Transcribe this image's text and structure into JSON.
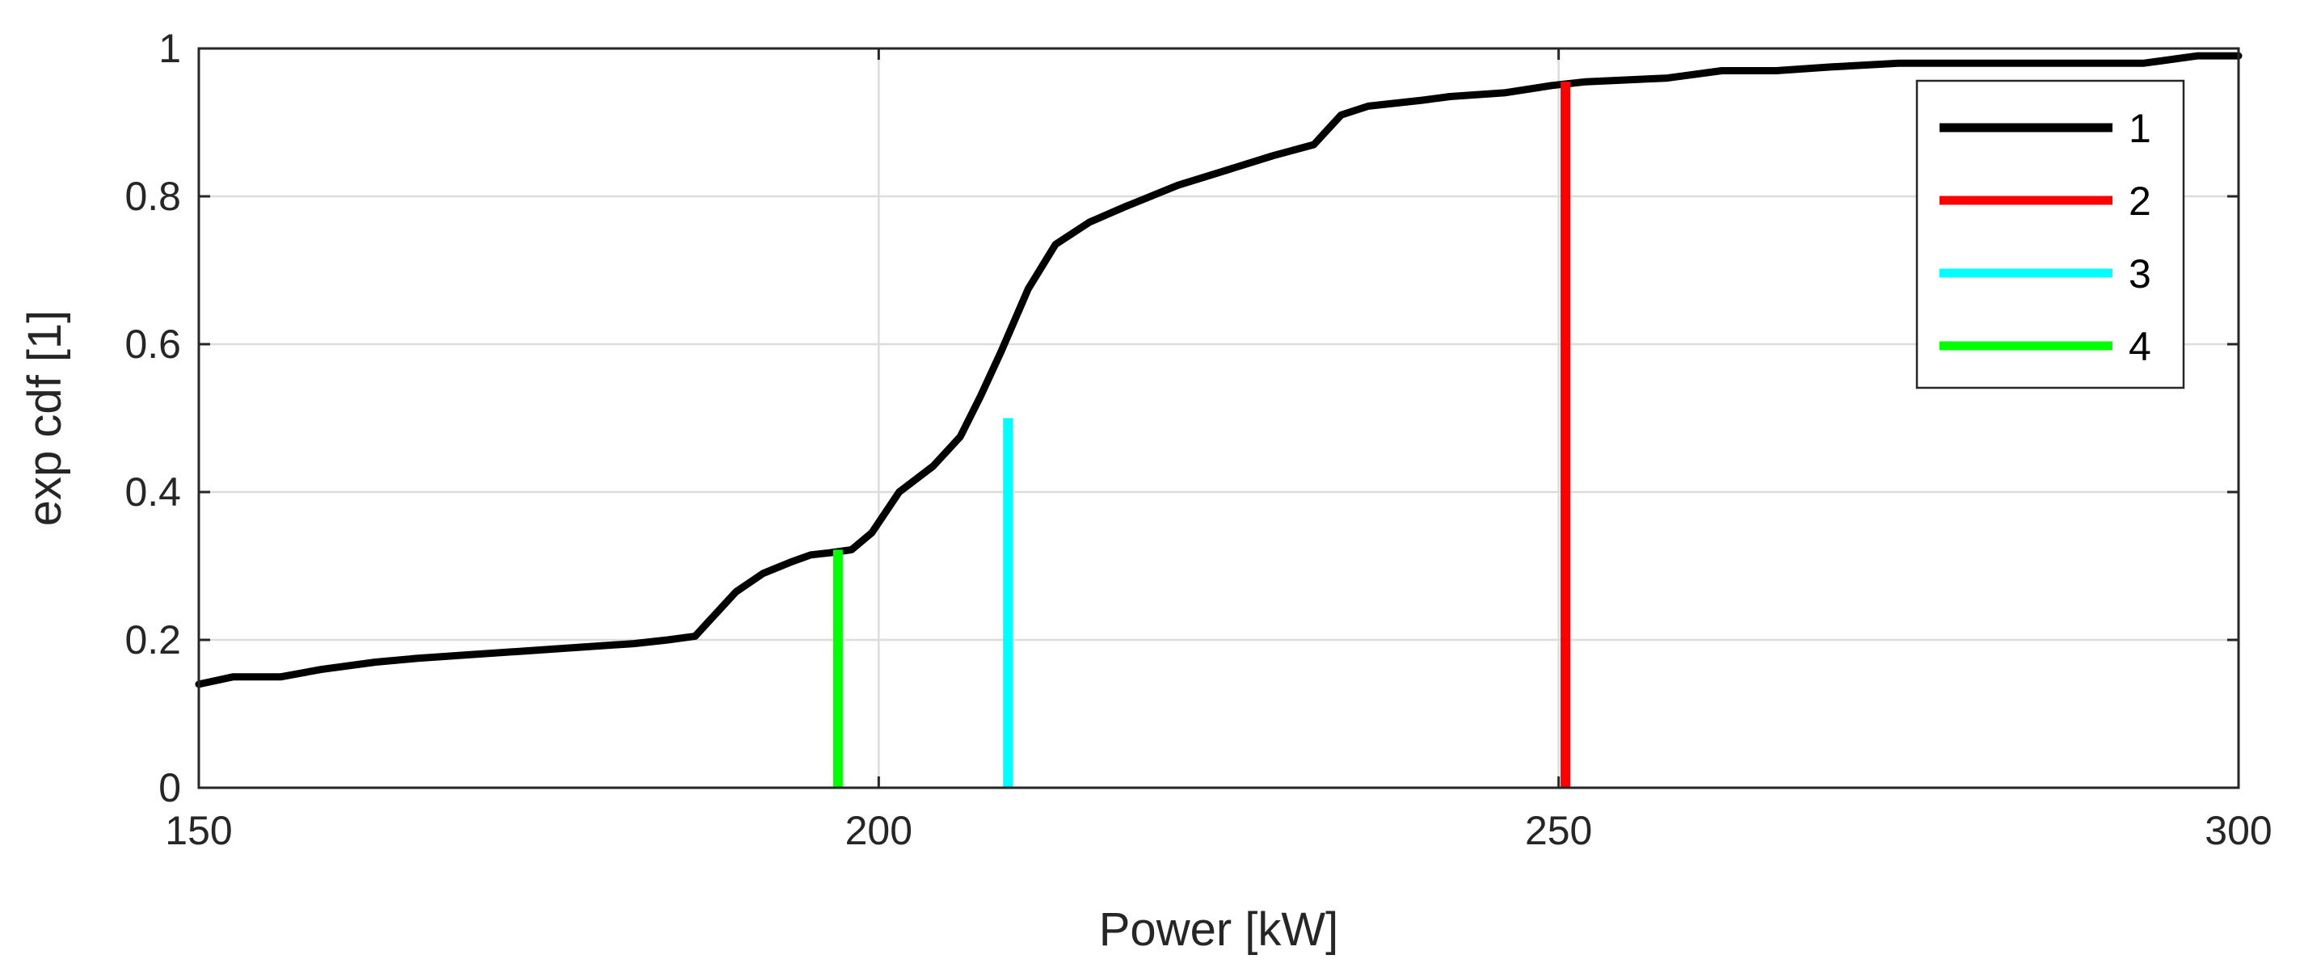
{
  "chart_data": {
    "type": "line",
    "title": "",
    "xlabel": "Power [kW]",
    "ylabel": "exp cdf [1]",
    "xlim": [
      150,
      300
    ],
    "ylim": [
      0,
      1
    ],
    "xticks": [
      150,
      200,
      250,
      300
    ],
    "yticks": [
      0,
      0.2,
      0.4,
      0.6,
      0.8,
      1
    ],
    "ytick_labels": [
      "0",
      "0.2",
      "0.4",
      "0.6",
      "0.8",
      "1"
    ],
    "grid": true,
    "legend_position": "top-right",
    "series": [
      {
        "name": "1",
        "color": "#000000",
        "kind": "line",
        "x": [
          150,
          152.5,
          156,
          159,
          163,
          166,
          170,
          174,
          178,
          182,
          184.5,
          186.5,
          187.5,
          189.5,
          191.5,
          193.5,
          195,
          196.5,
          198,
          199.5,
          201.5,
          204,
          206,
          207.5,
          209,
          211,
          213,
          215.5,
          218,
          222,
          225,
          229,
          232,
          234,
          236,
          240,
          242,
          246,
          249.5,
          252,
          258,
          262,
          266,
          270,
          275,
          280,
          290,
          293,
          297,
          300
        ],
        "y": [
          0.14,
          0.15,
          0.15,
          0.16,
          0.17,
          0.175,
          0.18,
          0.185,
          0.19,
          0.195,
          0.2,
          0.205,
          0.225,
          0.265,
          0.29,
          0.305,
          0.315,
          0.318,
          0.322,
          0.345,
          0.4,
          0.435,
          0.475,
          0.53,
          0.59,
          0.675,
          0.735,
          0.765,
          0.785,
          0.815,
          0.832,
          0.855,
          0.87,
          0.91,
          0.922,
          0.93,
          0.935,
          0.94,
          0.95,
          0.955,
          0.96,
          0.97,
          0.97,
          0.975,
          0.98,
          0.98,
          0.98,
          0.98,
          0.99,
          0.99
        ]
      },
      {
        "name": "2",
        "color": "#ff0000",
        "kind": "vline",
        "x": 250.5,
        "y": [
          0,
          0.955
        ]
      },
      {
        "name": "3",
        "color": "#00ffff",
        "kind": "vline",
        "x": 209.5,
        "y": [
          0,
          0.5
        ]
      },
      {
        "name": "4",
        "color": "#00ff00",
        "kind": "vline",
        "x": 197,
        "y": [
          0,
          0.322
        ]
      }
    ]
  }
}
